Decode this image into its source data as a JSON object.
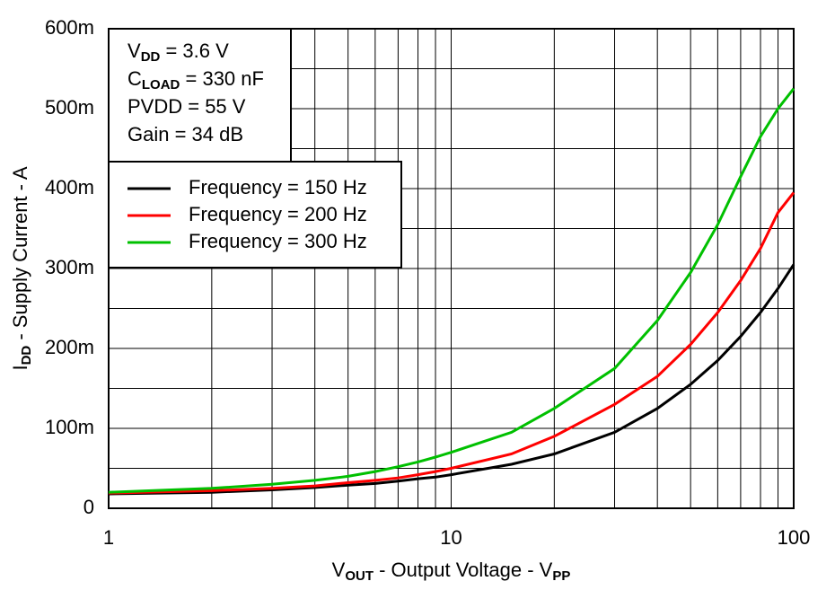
{
  "chart_data": {
    "type": "line",
    "x_label": {
      "text": "V",
      "sub": "OUT",
      "rest": " - Output Voltage - V",
      "sub2": "PP"
    },
    "y_label": {
      "text": "I",
      "sub": "DD",
      "rest": " - Supply Current - A"
    },
    "annotations": [
      {
        "text": "V",
        "sub": "DD",
        "rest": " = 3.6 V"
      },
      {
        "text": "C",
        "sub": "LOAD",
        "rest": " = 330 nF"
      },
      {
        "text": "PVDD = 55 V"
      },
      {
        "text": "Gain = 34 dB"
      }
    ],
    "x": [
      1,
      2,
      3,
      4,
      5,
      6,
      7,
      8,
      9,
      10,
      15,
      20,
      30,
      40,
      50,
      60,
      70,
      80,
      90,
      100
    ],
    "series": [
      {
        "name": "Frequency = 150 Hz",
        "color": "#000000",
        "values": [
          0.018,
          0.02,
          0.023,
          0.026,
          0.029,
          0.031,
          0.034,
          0.037,
          0.039,
          0.042,
          0.055,
          0.068,
          0.095,
          0.125,
          0.155,
          0.185,
          0.215,
          0.245,
          0.275,
          0.305
        ]
      },
      {
        "name": "Frequency = 200 Hz",
        "color": "#ff0000",
        "values": [
          0.019,
          0.022,
          0.025,
          0.028,
          0.032,
          0.035,
          0.038,
          0.042,
          0.046,
          0.05,
          0.068,
          0.09,
          0.13,
          0.165,
          0.205,
          0.245,
          0.285,
          0.325,
          0.37,
          0.395
        ]
      },
      {
        "name": "Frequency = 300 Hz",
        "color": "#00c000",
        "values": [
          0.02,
          0.025,
          0.03,
          0.035,
          0.04,
          0.046,
          0.052,
          0.058,
          0.064,
          0.07,
          0.095,
          0.125,
          0.175,
          0.235,
          0.295,
          0.355,
          0.415,
          0.465,
          0.5,
          0.525
        ]
      }
    ],
    "xscale": "log",
    "xlim": [
      1,
      100
    ],
    "xticks": [
      1,
      10,
      100
    ],
    "xminor_ticks": [
      2,
      3,
      4,
      5,
      6,
      7,
      8,
      9,
      20,
      30,
      40,
      50,
      60,
      70,
      80,
      90
    ],
    "ylim": [
      0,
      0.6
    ],
    "yticks": [
      0,
      {
        "value": 0.1,
        "label": "100m"
      },
      {
        "value": 0.2,
        "label": "200m"
      },
      {
        "value": 0.3,
        "label": "300m"
      },
      {
        "value": 0.4,
        "label": "400m"
      },
      {
        "value": 0.5,
        "label": "500m"
      },
      {
        "value": 0.6,
        "label": "600m"
      }
    ],
    "yminor_ticks": [
      0.05,
      0.15,
      0.25,
      0.35,
      0.45,
      0.55
    ],
    "grid": true,
    "legend": "upper left"
  }
}
